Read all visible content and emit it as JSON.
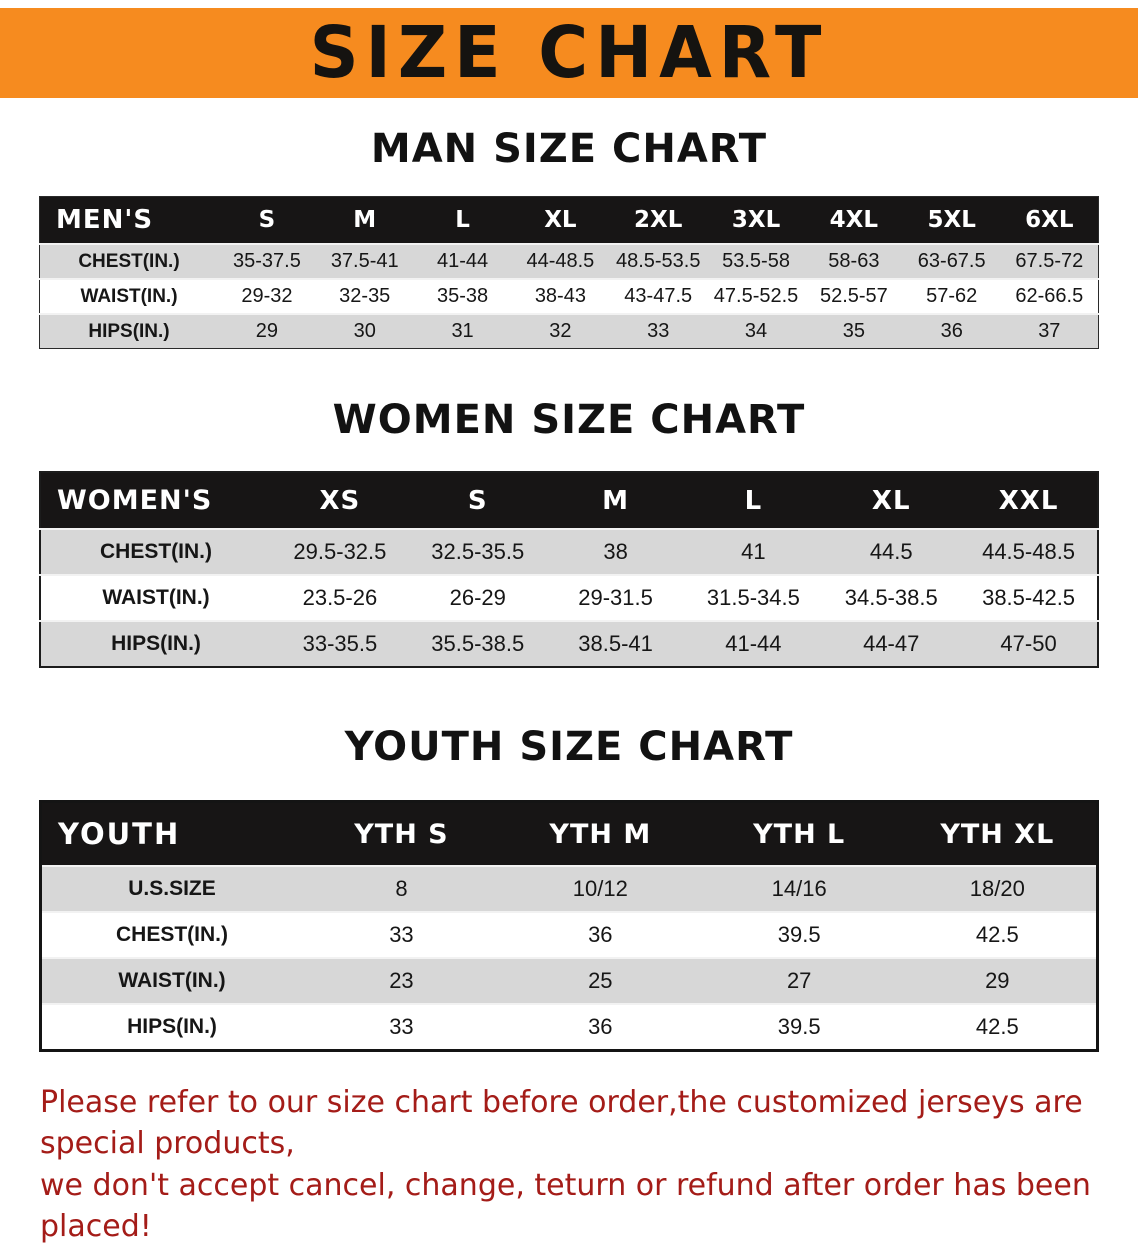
{
  "colors": {
    "banner_bg": "#f68b1f",
    "header_bar_bg": "#171515",
    "stripe_gray": "#d7d7d7",
    "footer_text": "#a41c18"
  },
  "banner": {
    "title": "SIZE CHART"
  },
  "sections": [
    {
      "heading": "MAN SIZE CHART",
      "table": {
        "corner": "MEN'S",
        "columns": [
          "S",
          "M",
          "L",
          "XL",
          "2XL",
          "3XL",
          "4XL",
          "5XL",
          "6XL"
        ],
        "rows": [
          {
            "label": "CHEST(IN.)",
            "values": [
              "35-37.5",
              "37.5-41",
              "41-44",
              "44-48.5",
              "48.5-53.5",
              "53.5-58",
              "58-63",
              "63-67.5",
              "67.5-72"
            ]
          },
          {
            "label": "WAIST(IN.)",
            "values": [
              "29-32",
              "32-35",
              "35-38",
              "38-43",
              "43-47.5",
              "47.5-52.5",
              "52.5-57",
              "57-62",
              "62-66.5"
            ]
          },
          {
            "label": "HIPS(IN.)",
            "values": [
              "29",
              "30",
              "31",
              "32",
              "33",
              "34",
              "35",
              "36",
              "37"
            ]
          }
        ]
      }
    },
    {
      "heading": "WOMEN SIZE CHART",
      "table": {
        "corner": "WOMEN'S",
        "columns": [
          "XS",
          "S",
          "M",
          "L",
          "XL",
          "XXL"
        ],
        "rows": [
          {
            "label": "CHEST(IN.)",
            "values": [
              "29.5-32.5",
              "32.5-35.5",
              "38",
              "41",
              "44.5",
              "44.5-48.5"
            ]
          },
          {
            "label": "WAIST(IN.)",
            "values": [
              "23.5-26",
              "26-29",
              "29-31.5",
              "31.5-34.5",
              "34.5-38.5",
              "38.5-42.5"
            ]
          },
          {
            "label": "HIPS(IN.)",
            "values": [
              "33-35.5",
              "35.5-38.5",
              "38.5-41",
              "41-44",
              "44-47",
              "47-50"
            ]
          }
        ]
      }
    },
    {
      "heading": "YOUTH SIZE CHART",
      "table": {
        "corner": "YOUTH",
        "columns": [
          "YTH S",
          "YTH M",
          "YTH L",
          "YTH XL"
        ],
        "rows": [
          {
            "label": "U.S.SIZE",
            "values": [
              "8",
              "10/12",
              "14/16",
              "18/20"
            ]
          },
          {
            "label": "CHEST(IN.)",
            "values": [
              "33",
              "36",
              "39.5",
              "42.5"
            ]
          },
          {
            "label": "WAIST(IN.)",
            "values": [
              "23",
              "25",
              "27",
              "29"
            ]
          },
          {
            "label": "HIPS(IN.)",
            "values": [
              "33",
              "36",
              "39.5",
              "42.5"
            ]
          }
        ]
      }
    }
  ],
  "footer": {
    "line1": "Please refer to our size chart before order,the customized jerseys are special products,",
    "line2": "we don't accept cancel, change, teturn or refund after order has been placed!"
  }
}
